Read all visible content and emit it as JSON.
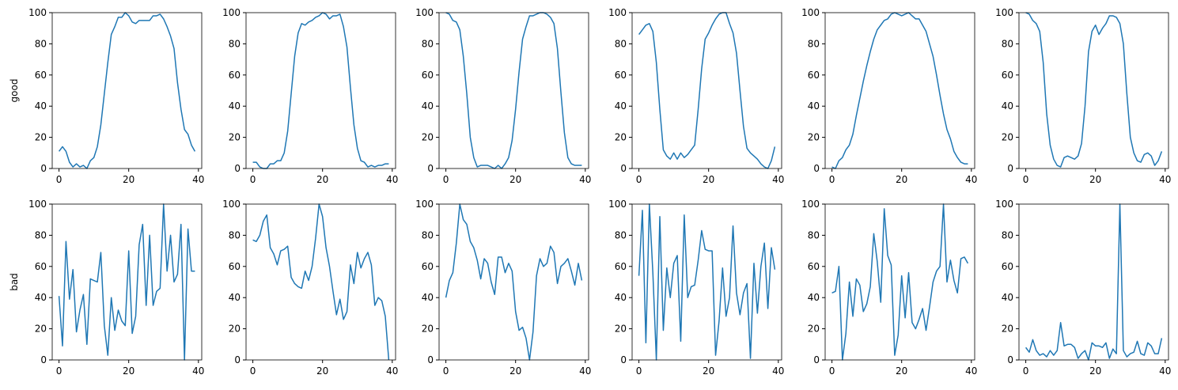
{
  "chart_data": [
    {
      "type": "line",
      "ylabel": "good",
      "color": "#1f77b4",
      "x": [
        0,
        1,
        2,
        3,
        4,
        5,
        6,
        7,
        8,
        9,
        10,
        11,
        12,
        13,
        14,
        15,
        16,
        17,
        18,
        19,
        20,
        21,
        22,
        23,
        24,
        25,
        26,
        27,
        28,
        29,
        30,
        31,
        32,
        33,
        34,
        35,
        36,
        37,
        38,
        39
      ],
      "values": [
        11,
        14,
        11,
        4,
        1,
        3,
        1,
        2,
        0,
        5,
        7,
        14,
        28,
        48,
        68,
        86,
        91,
        97,
        97,
        100,
        98,
        94,
        93,
        95,
        95,
        95,
        95,
        98,
        98,
        99,
        96,
        91,
        85,
        77,
        55,
        38,
        25,
        22,
        15,
        11
      ],
      "xlim": [
        -1.95,
        40.95
      ],
      "ylim": [
        0,
        100
      ],
      "xticks": [
        0,
        20,
        40
      ],
      "yticks": [
        0,
        20,
        40,
        60,
        80,
        100
      ]
    },
    {
      "type": "line",
      "color": "#1f77b4",
      "x": [
        0,
        1,
        2,
        3,
        4,
        5,
        6,
        7,
        8,
        9,
        10,
        11,
        12,
        13,
        14,
        15,
        16,
        17,
        18,
        19,
        20,
        21,
        22,
        23,
        24,
        25,
        26,
        27,
        28,
        29,
        30,
        31,
        32,
        33,
        34,
        35,
        36,
        37,
        38,
        39
      ],
      "values": [
        4,
        4,
        1,
        0,
        0,
        3,
        3,
        5,
        5,
        10,
        24,
        48,
        72,
        87,
        93,
        92,
        94,
        95,
        97,
        98,
        100,
        99,
        96,
        98,
        98,
        99,
        91,
        78,
        52,
        28,
        13,
        5,
        4,
        1,
        2,
        1,
        2,
        2,
        3,
        3
      ],
      "xlim": [
        -1.95,
        40.95
      ],
      "ylim": [
        0,
        100
      ],
      "xticks": [
        0,
        20,
        40
      ],
      "yticks": [
        0,
        20,
        40,
        60,
        80,
        100
      ]
    },
    {
      "type": "line",
      "color": "#1f77b4",
      "x": [
        0,
        1,
        2,
        3,
        4,
        5,
        6,
        7,
        8,
        9,
        10,
        11,
        12,
        13,
        14,
        15,
        16,
        17,
        18,
        19,
        20,
        21,
        22,
        23,
        24,
        25,
        26,
        27,
        28,
        29,
        30,
        31,
        32,
        33,
        34,
        35,
        36,
        37,
        38,
        39
      ],
      "values": [
        100,
        99,
        95,
        94,
        89,
        72,
        48,
        20,
        7,
        1,
        2,
        2,
        2,
        1,
        0,
        2,
        0,
        3,
        7,
        18,
        38,
        62,
        83,
        91,
        98,
        98,
        99,
        100,
        100,
        99,
        97,
        93,
        77,
        49,
        23,
        7,
        3,
        2,
        2,
        2
      ],
      "xlim": [
        -1.95,
        40.95
      ],
      "ylim": [
        0,
        100
      ],
      "xticks": [
        0,
        20,
        40
      ],
      "yticks": [
        0,
        20,
        40,
        60,
        80,
        100
      ]
    },
    {
      "type": "line",
      "color": "#1f77b4",
      "x": [
        0,
        1,
        2,
        3,
        4,
        5,
        6,
        7,
        8,
        9,
        10,
        11,
        12,
        13,
        14,
        15,
        16,
        17,
        18,
        19,
        20,
        21,
        22,
        23,
        24,
        25,
        26,
        27,
        28,
        29,
        30,
        31,
        32,
        33,
        34,
        35,
        36,
        37,
        38,
        39
      ],
      "values": [
        86,
        89,
        92,
        93,
        88,
        68,
        38,
        12,
        8,
        6,
        10,
        6,
        10,
        7,
        9,
        12,
        15,
        38,
        64,
        83,
        87,
        92,
        96,
        99,
        100,
        100,
        93,
        87,
        74,
        50,
        27,
        13,
        10,
        8,
        6,
        3,
        1,
        0,
        5,
        14
      ],
      "xlim": [
        -1.95,
        40.95
      ],
      "ylim": [
        0,
        100
      ],
      "xticks": [
        0,
        20,
        40
      ],
      "yticks": [
        0,
        20,
        40,
        60,
        80,
        100
      ]
    },
    {
      "type": "line",
      "color": "#1f77b4",
      "x": [
        0,
        1,
        2,
        3,
        4,
        5,
        6,
        7,
        8,
        9,
        10,
        11,
        12,
        13,
        14,
        15,
        16,
        17,
        18,
        19,
        20,
        21,
        22,
        23,
        24,
        25,
        26,
        27,
        28,
        29,
        30,
        31,
        32,
        33,
        34,
        35,
        36,
        37,
        38,
        39
      ],
      "values": [
        1,
        0,
        5,
        7,
        12,
        15,
        22,
        34,
        45,
        56,
        66,
        75,
        83,
        89,
        92,
        95,
        96,
        99,
        100,
        99,
        98,
        99,
        100,
        98,
        96,
        96,
        92,
        88,
        80,
        72,
        60,
        47,
        35,
        25,
        19,
        11,
        7,
        4,
        3,
        3
      ],
      "xlim": [
        -1.95,
        40.95
      ],
      "ylim": [
        0,
        100
      ],
      "xticks": [
        0,
        20,
        40
      ],
      "yticks": [
        0,
        20,
        40,
        60,
        80,
        100
      ]
    },
    {
      "type": "line",
      "color": "#1f77b4",
      "x": [
        0,
        1,
        2,
        3,
        4,
        5,
        6,
        7,
        8,
        9,
        10,
        11,
        12,
        13,
        14,
        15,
        16,
        17,
        18,
        19,
        20,
        21,
        22,
        23,
        24,
        25,
        26,
        27,
        28,
        29,
        30,
        31,
        32,
        33,
        34,
        35,
        36,
        37,
        38,
        39
      ],
      "values": [
        100,
        99,
        95,
        93,
        88,
        68,
        35,
        15,
        6,
        2,
        1,
        7,
        8,
        7,
        6,
        8,
        16,
        40,
        75,
        88,
        92,
        86,
        90,
        93,
        98,
        98,
        97,
        93,
        80,
        48,
        20,
        10,
        5,
        4,
        9,
        10,
        8,
        2,
        5,
        11
      ],
      "xlim": [
        -1.95,
        40.95
      ],
      "ylim": [
        0,
        100
      ],
      "xticks": [
        0,
        20,
        40
      ],
      "yticks": [
        0,
        20,
        40,
        60,
        80,
        100
      ]
    },
    {
      "type": "line",
      "ylabel": "bad",
      "color": "#1f77b4",
      "x": [
        0,
        1,
        2,
        3,
        4,
        5,
        6,
        7,
        8,
        9,
        10,
        11,
        12,
        13,
        14,
        15,
        16,
        17,
        18,
        19,
        20,
        21,
        22,
        23,
        24,
        25,
        26,
        27,
        28,
        29,
        30,
        31,
        32,
        33,
        34,
        35,
        36,
        37,
        38,
        39
      ],
      "values": [
        41,
        9,
        76,
        39,
        58,
        18,
        32,
        42,
        10,
        52,
        51,
        50,
        69,
        22,
        3,
        40,
        19,
        32,
        25,
        22,
        70,
        17,
        28,
        74,
        87,
        35,
        80,
        35,
        44,
        46,
        100,
        57,
        80,
        50,
        55,
        87,
        0,
        84,
        57,
        57
      ],
      "xlim": [
        -1.95,
        40.95
      ],
      "ylim": [
        0,
        100
      ],
      "xticks": [
        0,
        20,
        40
      ],
      "yticks": [
        0,
        20,
        40,
        60,
        80,
        100
      ]
    },
    {
      "type": "line",
      "color": "#1f77b4",
      "x": [
        0,
        1,
        2,
        3,
        4,
        5,
        6,
        7,
        8,
        9,
        10,
        11,
        12,
        13,
        14,
        15,
        16,
        17,
        18,
        19,
        20,
        21,
        22,
        23,
        24,
        25,
        26,
        27,
        28,
        29,
        30,
        31,
        32,
        33,
        34,
        35,
        36,
        37,
        38,
        39
      ],
      "values": [
        77,
        76,
        80,
        89,
        93,
        72,
        68,
        61,
        70,
        71,
        73,
        53,
        49,
        47,
        46,
        57,
        51,
        60,
        78,
        100,
        92,
        72,
        60,
        44,
        29,
        39,
        26,
        31,
        61,
        49,
        69,
        59,
        65,
        69,
        61,
        35,
        40,
        38,
        28,
        0
      ],
      "xlim": [
        -1.95,
        40.95
      ],
      "ylim": [
        0,
        100
      ],
      "xticks": [
        0,
        20,
        40
      ],
      "yticks": [
        0,
        20,
        40,
        60,
        80,
        100
      ]
    },
    {
      "type": "line",
      "color": "#1f77b4",
      "x": [
        0,
        1,
        2,
        3,
        4,
        5,
        6,
        7,
        8,
        9,
        10,
        11,
        12,
        13,
        14,
        15,
        16,
        17,
        18,
        19,
        20,
        21,
        22,
        23,
        24,
        25,
        26,
        27,
        28,
        29,
        30,
        31,
        32,
        33,
        34,
        35,
        36,
        37,
        38,
        39
      ],
      "values": [
        40,
        51,
        56,
        75,
        100,
        90,
        87,
        76,
        72,
        64,
        52,
        65,
        62,
        50,
        42,
        66,
        66,
        56,
        62,
        57,
        31,
        19,
        21,
        14,
        0,
        18,
        54,
        65,
        60,
        62,
        73,
        69,
        49,
        60,
        62,
        65,
        57,
        48,
        62,
        51
      ],
      "xlim": [
        -1.95,
        40.95
      ],
      "ylim": [
        0,
        100
      ],
      "xticks": [
        0,
        20,
        40
      ],
      "yticks": [
        0,
        20,
        40,
        60,
        80,
        100
      ]
    },
    {
      "type": "line",
      "color": "#1f77b4",
      "x": [
        0,
        1,
        2,
        3,
        4,
        5,
        6,
        7,
        8,
        9,
        10,
        11,
        12,
        13,
        14,
        15,
        16,
        17,
        18,
        19,
        20,
        21,
        22,
        23,
        24,
        25,
        26,
        27,
        28,
        29,
        30,
        31,
        32,
        33,
        34,
        35,
        36,
        37,
        38,
        39
      ],
      "values": [
        54,
        96,
        11,
        100,
        56,
        0,
        92,
        19,
        59,
        40,
        62,
        67,
        12,
        93,
        40,
        47,
        48,
        64,
        83,
        71,
        70,
        70,
        3,
        25,
        59,
        28,
        40,
        86,
        43,
        29,
        43,
        49,
        1,
        62,
        30,
        60,
        75,
        33,
        72,
        58
      ],
      "xlim": [
        -1.95,
        40.95
      ],
      "ylim": [
        0,
        100
      ],
      "xticks": [
        0,
        20,
        40
      ],
      "yticks": [
        0,
        20,
        40,
        60,
        80,
        100
      ]
    },
    {
      "type": "line",
      "color": "#1f77b4",
      "x": [
        0,
        1,
        2,
        3,
        4,
        5,
        6,
        7,
        8,
        9,
        10,
        11,
        12,
        13,
        14,
        15,
        16,
        17,
        18,
        19,
        20,
        21,
        22,
        23,
        24,
        25,
        26,
        27,
        28,
        29,
        30,
        31,
        32,
        33,
        34,
        35,
        36,
        37,
        38,
        39
      ],
      "values": [
        43,
        44,
        60,
        0,
        17,
        50,
        28,
        52,
        48,
        31,
        36,
        47,
        81,
        63,
        37,
        97,
        67,
        61,
        3,
        16,
        54,
        27,
        56,
        24,
        20,
        26,
        33,
        19,
        34,
        50,
        57,
        60,
        100,
        50,
        64,
        51,
        43,
        65,
        66,
        62
      ],
      "xlim": [
        -1.95,
        40.95
      ],
      "ylim": [
        0,
        100
      ],
      "xticks": [
        0,
        20,
        40
      ],
      "yticks": [
        0,
        20,
        40,
        60,
        80,
        100
      ]
    },
    {
      "type": "line",
      "color": "#1f77b4",
      "x": [
        0,
        1,
        2,
        3,
        4,
        5,
        6,
        7,
        8,
        9,
        10,
        11,
        12,
        13,
        14,
        15,
        16,
        17,
        18,
        19,
        20,
        21,
        22,
        23,
        24,
        25,
        26,
        27,
        28,
        29,
        30,
        31,
        32,
        33,
        34,
        35,
        36,
        37,
        38,
        39
      ],
      "values": [
        8,
        5,
        13,
        6,
        3,
        4,
        2,
        6,
        3,
        6,
        24,
        9,
        10,
        10,
        8,
        1,
        4,
        6,
        0,
        11,
        9,
        9,
        8,
        11,
        1,
        7,
        4,
        100,
        6,
        2,
        4,
        5,
        12,
        4,
        3,
        11,
        9,
        4,
        4,
        14
      ],
      "xlim": [
        -1.95,
        40.95
      ],
      "ylim": [
        0,
        100
      ],
      "xticks": [
        0,
        20,
        40
      ],
      "yticks": [
        0,
        20,
        40,
        60,
        80,
        100
      ]
    }
  ]
}
